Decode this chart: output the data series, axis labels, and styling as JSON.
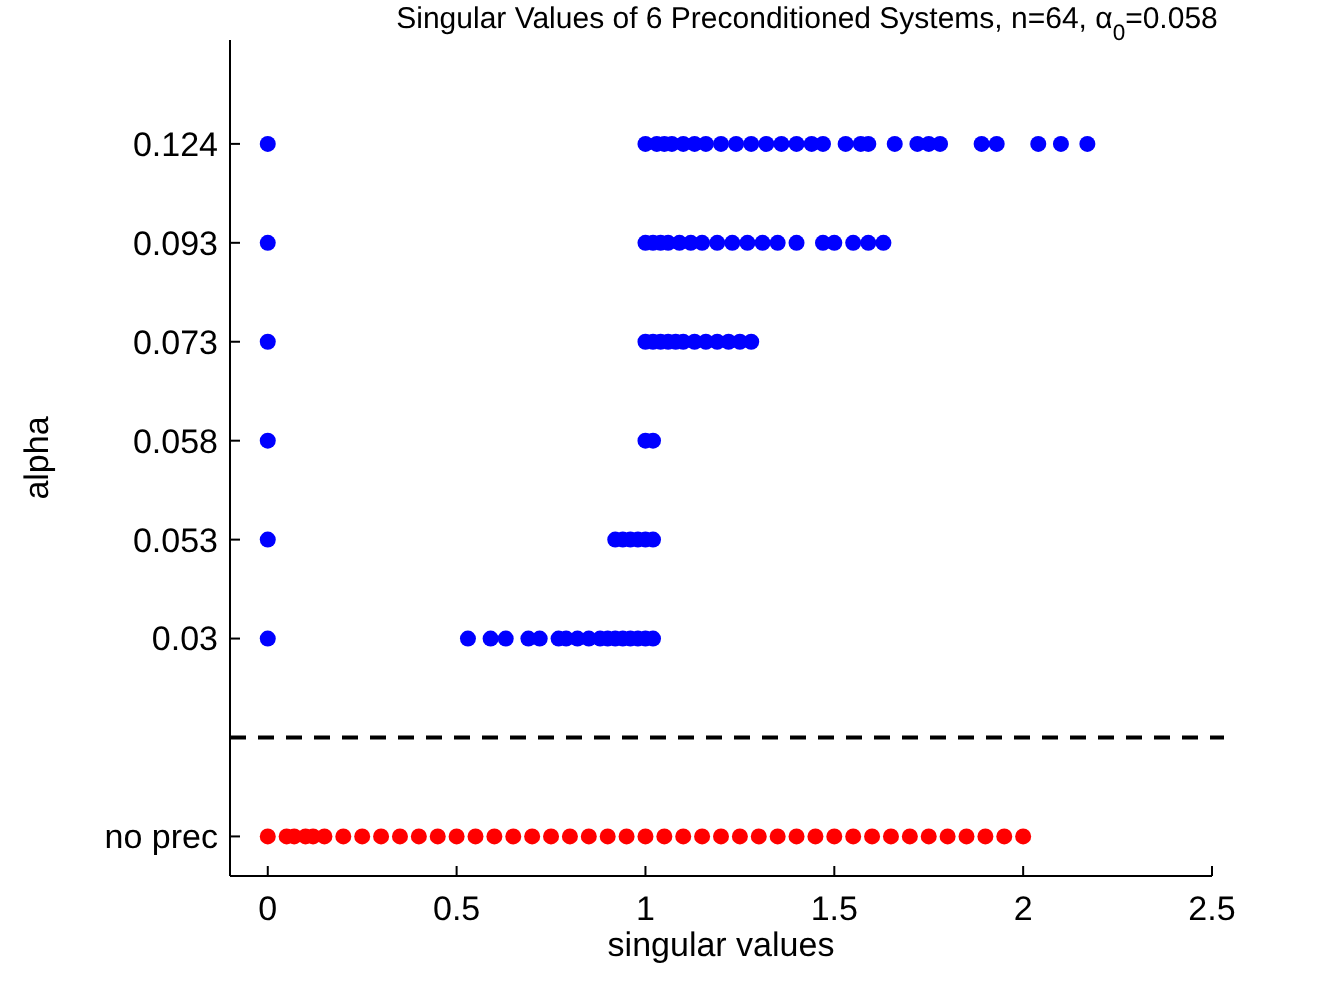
{
  "chart_data": {
    "type": "scatter",
    "orientation": "horizontal",
    "title": "Singular Values of 6 Preconditioned Systems, n=64, α$_{0}$=0.058",
    "xlabel": "singular values",
    "ylabel": "alpha",
    "categories": [
      "0.124",
      "0.093",
      "0.073",
      "0.058",
      "0.053",
      "0.03",
      null,
      "no prec"
    ],
    "xlim": [
      -0.1,
      2.5
    ],
    "xticks": [
      0,
      0.5,
      1,
      1.5,
      2,
      2.5
    ],
    "marker": "circle",
    "grid": false,
    "series": [
      {
        "color": "#0000ff",
        "x": [
          "0.124",
          "0.124",
          "0.124",
          "0.124",
          "0.124",
          "0.124",
          "0.124",
          "0.124",
          "0.124",
          "0.124",
          "0.124",
          "0.124",
          "0.124",
          "0.124",
          "0.124",
          "0.124",
          "0.124",
          "0.124",
          "0.124",
          "0.124",
          "0.124",
          "0.124",
          "0.124",
          "0.124",
          "0.124",
          "0.124",
          "0.124",
          "0.124",
          "0.093",
          "0.093",
          "0.093",
          "0.093",
          "0.093",
          "0.093",
          "0.093",
          "0.093",
          "0.093",
          "0.093",
          "0.093",
          "0.093",
          "0.093",
          "0.093",
          "0.093",
          "0.093",
          "0.093",
          "0.093",
          "0.093",
          "0.073",
          "0.073",
          "0.073",
          "0.073",
          "0.073",
          "0.073",
          "0.073",
          "0.073",
          "0.073",
          "0.073",
          "0.073",
          "0.073",
          "0.073",
          "0.058",
          "0.058",
          "0.058",
          "0.053",
          "0.053",
          "0.053",
          "0.053",
          "0.053",
          "0.053",
          "0.053",
          "0.03",
          "0.03",
          "0.03",
          "0.03",
          "0.03",
          "0.03",
          "0.03",
          "0.03",
          "0.03",
          "0.03",
          "0.03",
          "0.03",
          "0.03",
          "0.03",
          "0.03",
          "0.03",
          "0.03",
          "0.03"
        ],
        "values": [
          0,
          1.0,
          1.03,
          1.05,
          1.07,
          1.1,
          1.13,
          1.16,
          1.2,
          1.24,
          1.28,
          1.32,
          1.36,
          1.4,
          1.44,
          1.47,
          1.53,
          1.57,
          1.59,
          1.66,
          1.72,
          1.75,
          1.78,
          1.89,
          1.93,
          2.04,
          2.1,
          2.17,
          0,
          1.0,
          1.02,
          1.04,
          1.06,
          1.09,
          1.12,
          1.15,
          1.19,
          1.23,
          1.27,
          1.31,
          1.35,
          1.4,
          1.47,
          1.5,
          1.55,
          1.59,
          1.63,
          0,
          1.0,
          1.02,
          1.04,
          1.06,
          1.08,
          1.1,
          1.13,
          1.16,
          1.19,
          1.22,
          1.25,
          1.28,
          0,
          1.0,
          1.02,
          0,
          0.92,
          0.94,
          0.96,
          0.98,
          1.0,
          1.02,
          0,
          0.53,
          0.59,
          0.63,
          0.69,
          0.72,
          0.77,
          0.79,
          0.82,
          0.85,
          0.88,
          0.9,
          0.92,
          0.94,
          0.96,
          0.98,
          1.0,
          1.02
        ]
      },
      {
        "color": "#ff0000",
        "x": [
          "no prec",
          "no prec",
          "no prec",
          "no prec",
          "no prec",
          "no prec",
          "no prec",
          "no prec",
          "no prec",
          "no prec",
          "no prec",
          "no prec",
          "no prec",
          "no prec",
          "no prec",
          "no prec",
          "no prec",
          "no prec",
          "no prec",
          "no prec",
          "no prec",
          "no prec",
          "no prec",
          "no prec",
          "no prec",
          "no prec",
          "no prec",
          "no prec",
          "no prec",
          "no prec",
          "no prec",
          "no prec",
          "no prec",
          "no prec",
          "no prec",
          "no prec",
          "no prec",
          "no prec",
          "no prec",
          "no prec",
          "no prec",
          "no prec",
          "no prec"
        ],
        "values": [
          0,
          0.05,
          0.07,
          0.1,
          0.12,
          0.15,
          0.2,
          0.25,
          0.3,
          0.35,
          0.4,
          0.45,
          0.5,
          0.55,
          0.6,
          0.65,
          0.7,
          0.75,
          0.8,
          0.85,
          0.9,
          0.95,
          1.0,
          1.05,
          1.1,
          1.15,
          1.2,
          1.25,
          1.3,
          1.35,
          1.4,
          1.45,
          1.5,
          1.55,
          1.6,
          1.65,
          1.7,
          1.75,
          1.8,
          1.85,
          1.9,
          1.95,
          2.0
        ]
      }
    ]
  }
}
